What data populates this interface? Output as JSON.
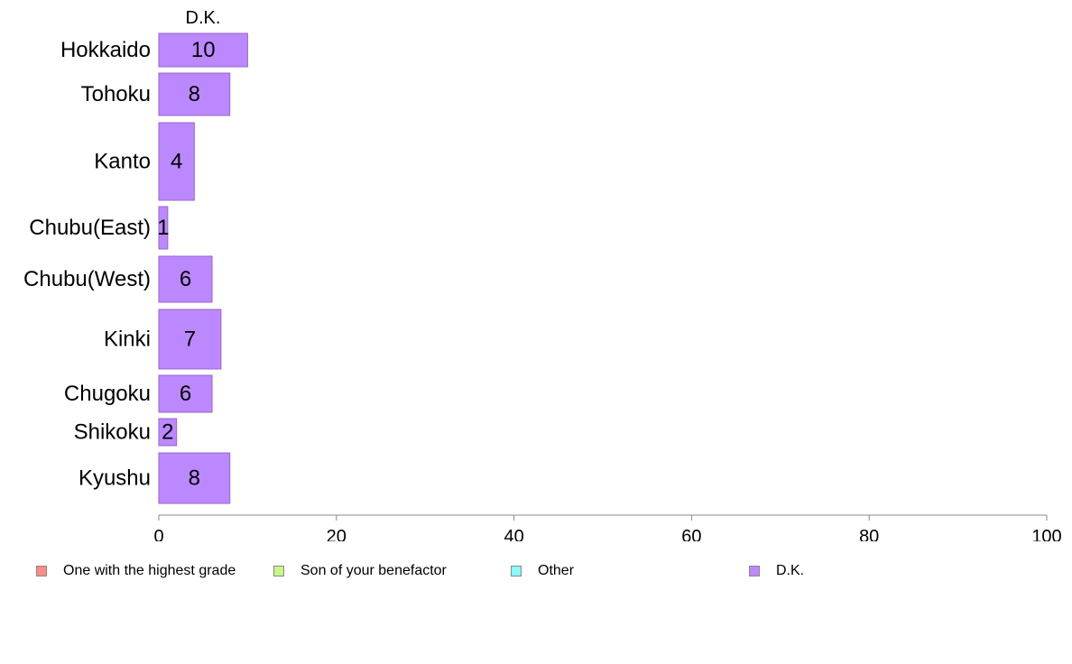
{
  "chart_data": {
    "type": "bar",
    "orientation": "horizontal",
    "stacked": true,
    "categories": [
      "Hokkaido",
      "Tohoku",
      "Kanto",
      "Chubu(East)",
      "Chubu(West)",
      "Kinki",
      "Chugoku",
      "Shikoku",
      "Kyushu"
    ],
    "series": [
      {
        "name": "One with the highest grade",
        "color": "#ff8a8a",
        "values": [
          0,
          0,
          0,
          0,
          0,
          0,
          0,
          0,
          0
        ]
      },
      {
        "name": "Son of your benefactor",
        "color": "#c8f58a",
        "values": [
          0,
          0,
          0,
          0,
          0,
          0,
          0,
          0,
          0
        ]
      },
      {
        "name": "Other",
        "color": "#8afafa",
        "values": [
          0,
          0,
          0,
          0,
          0,
          0,
          0,
          0,
          0
        ]
      },
      {
        "name": "D.K.",
        "color": "#bb88ff",
        "values": [
          10,
          8,
          4,
          1,
          6,
          7,
          6,
          2,
          8
        ]
      }
    ],
    "column_header": "D.K.",
    "xlim": [
      0,
      100
    ],
    "xticks": [
      0,
      20,
      40,
      60,
      80,
      100
    ],
    "legend_position": "bottom",
    "grid": false
  }
}
